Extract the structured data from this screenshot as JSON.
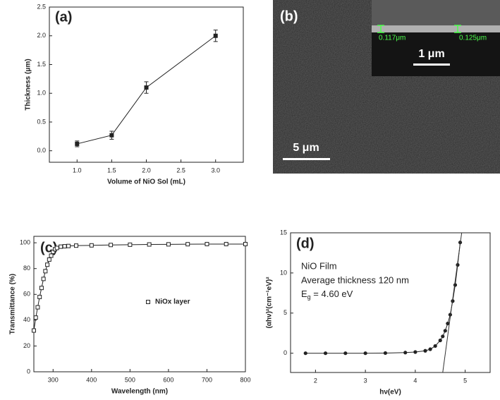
{
  "chart_data": [
    {
      "type": "line",
      "panel_label": "(a)",
      "xlabel": "Volume of NiO Sol (mL)",
      "ylabel": "Thickness (μm)",
      "x": [
        1.0,
        1.5,
        2.0,
        3.0
      ],
      "series": [
        {
          "color": "#222222",
          "marker": "filled-square",
          "values": [
            0.12,
            0.27,
            1.1,
            2.0
          ],
          "errors": [
            0.05,
            0.07,
            0.1,
            0.1
          ]
        }
      ],
      "xlim": [
        0.6,
        3.4
      ],
      "ylim": [
        -0.2,
        2.5
      ],
      "xticks": [
        {
          "value": 1,
          "label": "1.0"
        },
        {
          "value": 1.5,
          "label": "1.5"
        },
        {
          "value": 2,
          "label": "2.0"
        },
        {
          "value": 2.5,
          "label": "2.5"
        },
        {
          "value": 3,
          "label": "3.0"
        }
      ],
      "yticks": [
        {
          "value": 0,
          "label": "0.0"
        },
        {
          "value": 0.5,
          "label": "0.5"
        },
        {
          "value": 1,
          "label": "1.0"
        },
        {
          "value": 1.5,
          "label": "1.5"
        },
        {
          "value": 2,
          "label": "2.0"
        },
        {
          "value": 2.5,
          "label": "2.5"
        }
      ]
    },
    {
      "type": "line",
      "panel_label": "(c)",
      "xlabel": "Wavelength (nm)",
      "ylabel": "Transmittance (%)",
      "x": [
        250,
        255,
        260,
        265,
        270,
        275,
        280,
        285,
        290,
        295,
        300,
        305,
        310,
        320,
        330,
        340,
        360,
        400,
        450,
        500,
        550,
        600,
        650,
        700,
        750,
        800
      ],
      "series": [
        {
          "name": "NiOx layer",
          "color": "#222222",
          "marker": "open-square",
          "values": [
            32,
            42,
            50,
            58,
            65,
            72,
            78,
            83,
            87,
            90,
            93,
            95,
            96,
            97,
            97.3,
            97.5,
            97.8,
            98,
            98.3,
            98.5,
            98.7,
            98.8,
            98.9,
            99,
            99,
            99
          ]
        }
      ],
      "xlim": [
        250,
        800
      ],
      "ylim": [
        0,
        105
      ],
      "xticks": [
        300,
        400,
        500,
        600,
        700,
        800
      ],
      "yticks": [
        0,
        20,
        40,
        60,
        80,
        100
      ]
    },
    {
      "type": "line",
      "panel_label": "(d)",
      "xlabel": "hν(eV)",
      "ylabel": "(αhν)²(cm⁻¹eV)²",
      "annotations": [
        "NiO Film",
        "Average thickness 120 nm"
      ],
      "eg_label": {
        "main": "E",
        "sub": "g",
        "rest": " = 4.60 eV"
      },
      "x": [
        1.8,
        2.2,
        2.6,
        3.0,
        3.4,
        3.8,
        4.0,
        4.2,
        4.3,
        4.4,
        4.5,
        4.55,
        4.6,
        4.65,
        4.7,
        4.75,
        4.8,
        4.85,
        4.9
      ],
      "series": [
        {
          "color": "#222222",
          "marker": "filled-circle",
          "values": [
            0,
            0,
            0,
            0,
            0.02,
            0.08,
            0.15,
            0.3,
            0.5,
            0.9,
            1.6,
            2.1,
            2.8,
            3.7,
            4.8,
            6.5,
            8.5,
            11,
            13.8
          ]
        }
      ],
      "tangent": {
        "x": [
          4.55,
          4.93
        ],
        "y": [
          -2.4,
          15
        ]
      },
      "xlim": [
        1.5,
        5.5
      ],
      "ylim": [
        -2.4,
        15
      ],
      "xticks": [
        2,
        3,
        4,
        5
      ],
      "yticks": [
        0,
        5,
        10,
        15
      ]
    }
  ],
  "sem_image": {
    "panel_label": "(b)",
    "scale_bar": "5 μm",
    "inset": {
      "scale_bar": "1 μm",
      "measurements": [
        "0.117μm",
        "0.125μm"
      ]
    }
  }
}
